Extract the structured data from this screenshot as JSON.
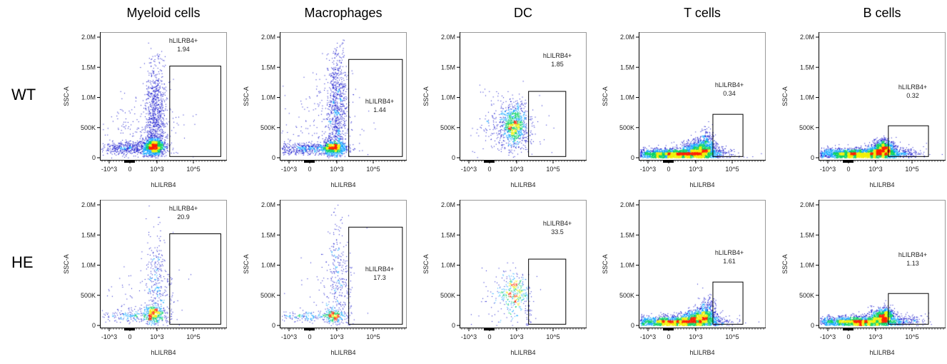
{
  "chart_data": {
    "type": "scatter",
    "columns": [
      "Myeloid cells",
      "Macrophages",
      "DC",
      "T cells",
      "B cells"
    ],
    "rows": [
      "WT",
      "HE"
    ],
    "xlabel": "hLILRB4",
    "ylabel": "SSC-A",
    "x_ticks": [
      "-10^3",
      "0",
      "10^3",
      "10^5"
    ],
    "y_ticks": [
      "0",
      "500K",
      "1.0M",
      "1.5M",
      "2.0M"
    ],
    "y_range": [
      0,
      2000000
    ],
    "x_scale": "biexponential",
    "gate_name": "hLILRB4+",
    "gates": {
      "Myeloid cells": {
        "x": [
          5000,
          3200000
        ],
        "y": [
          20000,
          1520000
        ]
      },
      "Macrophages": {
        "x": [
          4500,
          4000000
        ],
        "y": [
          20000,
          1630000
        ]
      },
      "DC": {
        "x": [
          4500,
          500000
        ],
        "y": [
          20000,
          1100000
        ]
      },
      "T cells": {
        "x": [
          8700,
          390000
        ],
        "y": [
          20000,
          720000
        ]
      },
      "B cells": {
        "x": [
          5000,
          800000
        ],
        "y": [
          20000,
          530000
        ]
      }
    },
    "gate_percent": {
      "WT": {
        "Myeloid cells": "1.94",
        "Macrophages": "1.44",
        "DC": "1.85",
        "T cells": "0.34",
        "B cells": "0.32"
      },
      "HE": {
        "Myeloid cells": "20.9",
        "Macrophages": "17.3",
        "DC": "33.5",
        "T cells": "1.61",
        "B cells": "1.13"
      }
    },
    "color_scale": [
      "#0000c8",
      "#00a0ff",
      "#00d060",
      "#f0f000",
      "#ff2000"
    ]
  }
}
